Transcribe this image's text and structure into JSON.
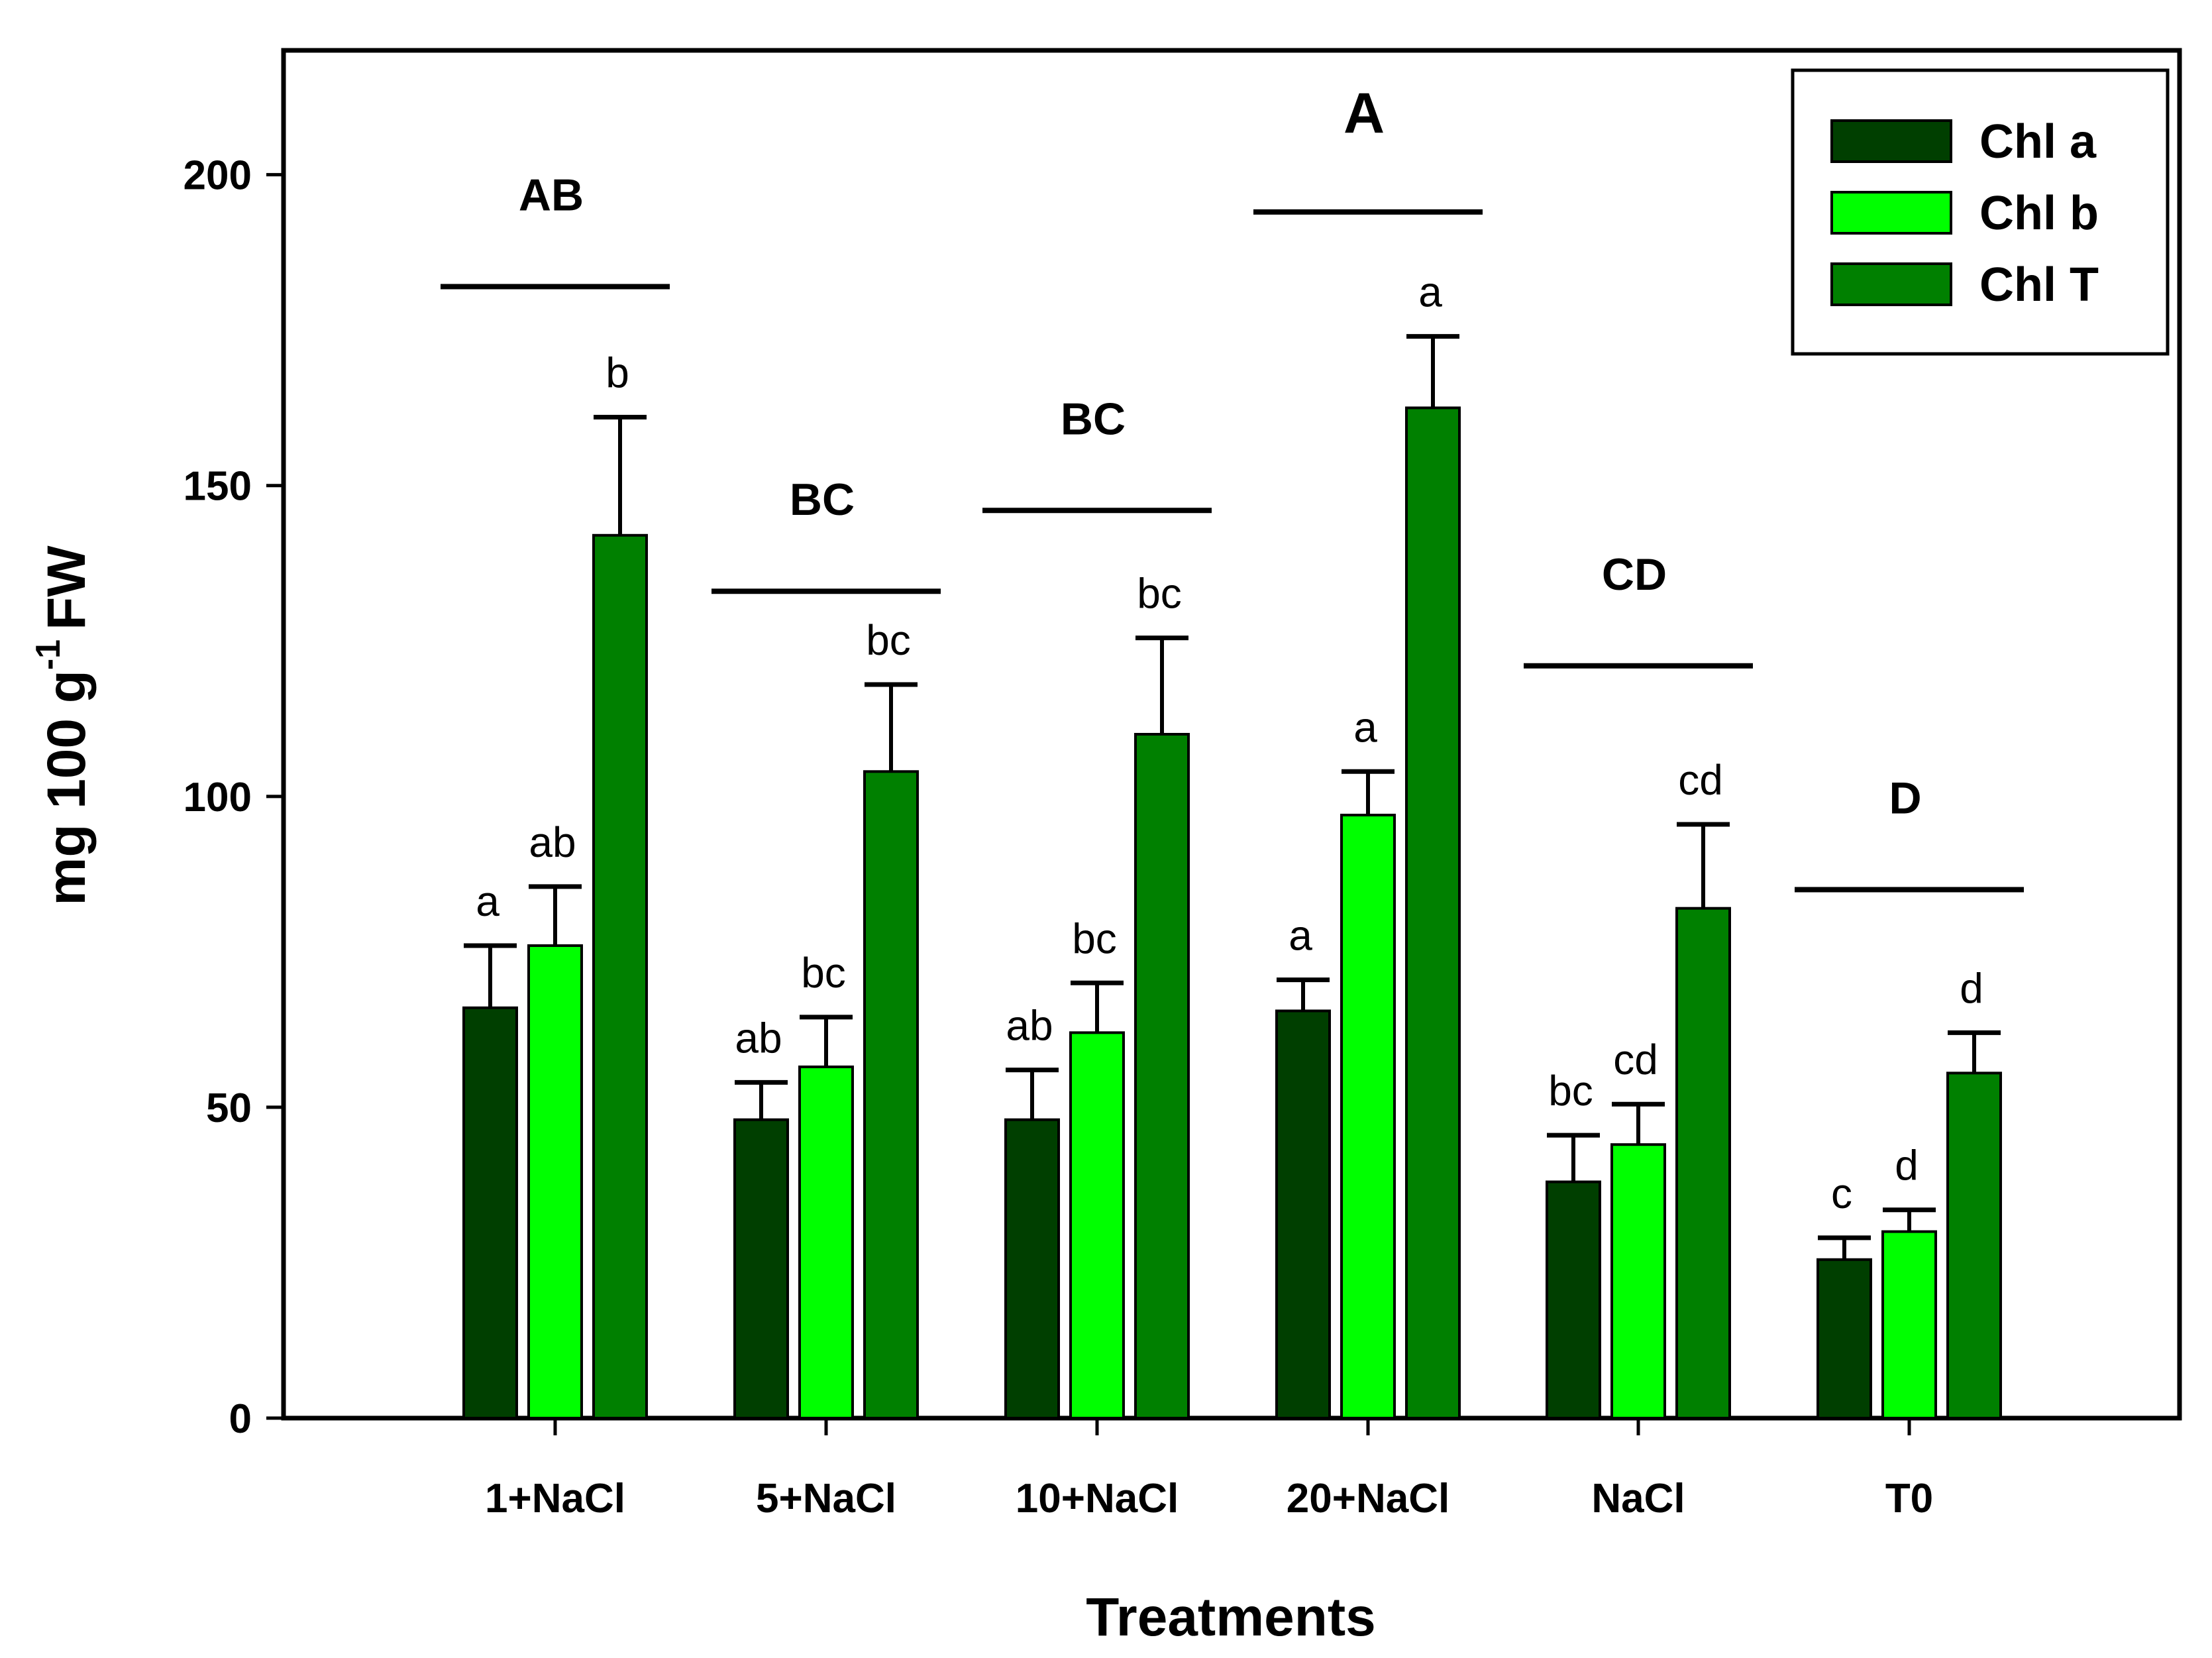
{
  "chart_data": {
    "type": "bar",
    "title": "",
    "xlabel": "Treatments",
    "ylabel": "mg 100 g",
    "ylabel_superscript": "-1",
    "ylabel_suffix": "FW",
    "ylim": [
      0,
      220
    ],
    "yticks": [
      0,
      50,
      100,
      150,
      200
    ],
    "categories": [
      "1+NaCl",
      "5+NaCl",
      "10+NaCl",
      "20+NaCl",
      "NaCl",
      "T0"
    ],
    "series": [
      {
        "name": "Chl a",
        "color": "#003f00",
        "values": [
          66,
          48,
          48,
          65.5,
          38,
          25.5
        ],
        "errors": [
          10,
          6,
          8,
          5,
          7.5,
          3.5
        ],
        "letters": [
          "a",
          "ab",
          "ab",
          "a",
          "bc",
          "c"
        ]
      },
      {
        "name": "Chl b",
        "color": "#00ff00",
        "values": [
          76,
          56.5,
          62,
          97,
          44,
          30
        ],
        "errors": [
          9.5,
          8,
          8,
          7,
          6.5,
          3.5
        ],
        "letters": [
          "ab",
          "bc",
          "bc",
          "a",
          "cd",
          "d"
        ]
      },
      {
        "name": "Chl T",
        "color": "#008000",
        "values": [
          142,
          104,
          110,
          162.5,
          82,
          55.5
        ],
        "errors": [
          19,
          14,
          15.5,
          11.5,
          13.5,
          6.5
        ],
        "letters": [
          "b",
          "bc",
          "bc",
          "a",
          "cd",
          "d"
        ]
      }
    ],
    "group_letters": [
      "AB",
      "BC",
      "BC",
      "A",
      "CD",
      "D"
    ],
    "group_line_values": [
      182,
      133,
      146,
      194,
      121,
      85
    ],
    "legend": {
      "position": "top-right",
      "entries": [
        "Chl a",
        "Chl b",
        "Chl T"
      ]
    }
  }
}
